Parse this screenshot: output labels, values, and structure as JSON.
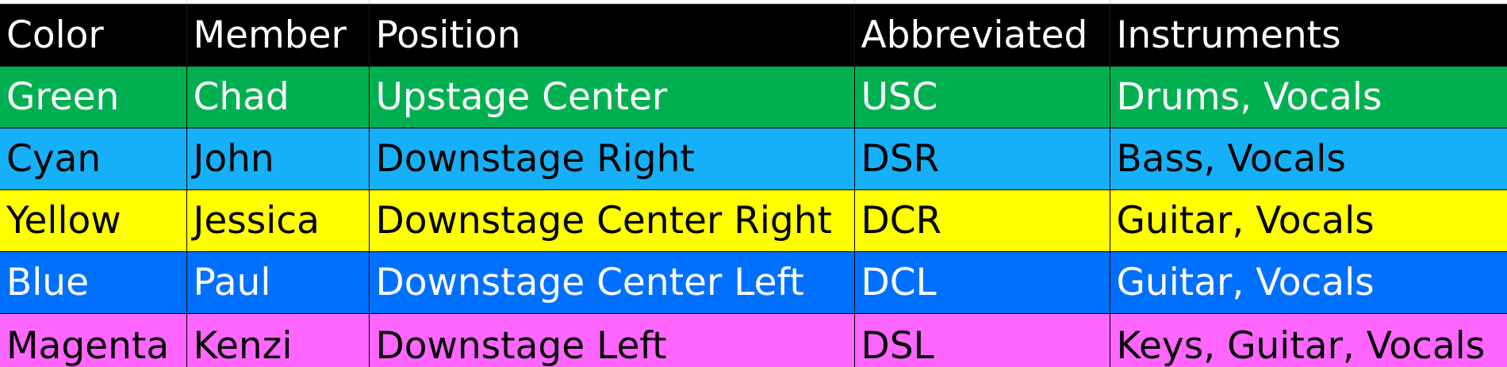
{
  "table": {
    "columns": [
      "Color",
      "Member",
      "Position",
      "Abbreviated",
      "Instruments"
    ],
    "rows": [
      {
        "color": "Green",
        "member": "Chad",
        "position": "Upstage Center",
        "abbreviated": "USC",
        "instruments": "Drums, Vocals",
        "fill": "#00b050",
        "text_color": "#ffffff"
      },
      {
        "color": "Cyan",
        "member": "John",
        "position": "Downstage Right",
        "abbreviated": "DSR",
        "instruments": "Bass, Vocals",
        "fill": "#16b0f8",
        "text_color": "#000000"
      },
      {
        "color": "Yellow",
        "member": "Jessica",
        "position": "Downstage Center Right",
        "abbreviated": "DCR",
        "instruments": "Guitar, Vocals",
        "fill": "#ffff00",
        "text_color": "#000000"
      },
      {
        "color": "Blue",
        "member": "Paul",
        "position": "Downstage Center Left",
        "abbreviated": "DCL",
        "instruments": "Guitar, Vocals",
        "fill": "#0070ff",
        "text_color": "#ffffff"
      },
      {
        "color": "Magenta",
        "member": "Kenzi",
        "position": "Downstage Left",
        "abbreviated": "DSL",
        "instruments": "Keys, Guitar, Vocals",
        "fill": "#ff66ff",
        "text_color": "#000000"
      }
    ]
  },
  "colors": {
    "header_bg": "#000000",
    "header_text": "#ffffff"
  }
}
